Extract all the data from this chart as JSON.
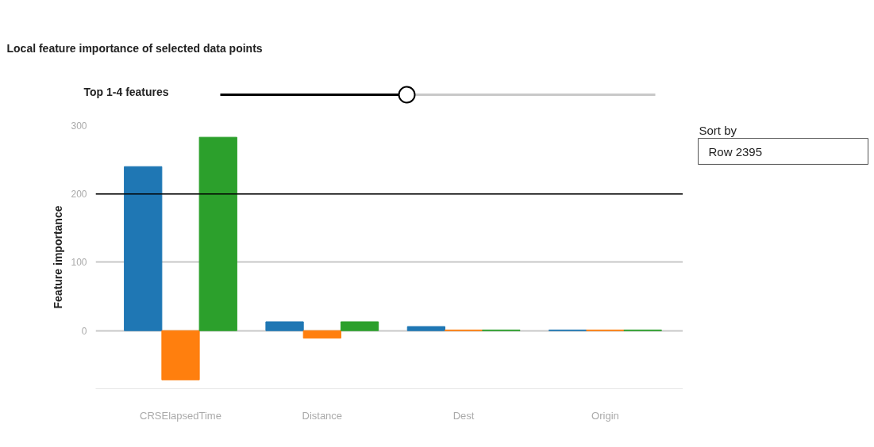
{
  "chart_data": {
    "type": "bar",
    "title": "Local feature importance of selected data points",
    "ylabel": "Feature importance",
    "categories": [
      "CRSElapsedTime",
      "Distance",
      "Dest",
      "Origin"
    ],
    "series": [
      {
        "color": "#1f77b4",
        "values": [
          240,
          13,
          6,
          1
        ]
      },
      {
        "color": "#ff7f0e",
        "values": [
          -72,
          -11,
          1,
          1
        ]
      },
      {
        "color": "#2ca02c",
        "values": [
          283,
          13,
          1,
          1
        ]
      }
    ],
    "ylim": [
      -85,
      300
    ],
    "yticks": [
      0,
      100,
      200,
      300
    ],
    "grid": "y",
    "ref_lines": [
      {
        "axis": "y",
        "value": 200,
        "label": null,
        "color": "#000000"
      }
    ],
    "annotations": [
      "Top 1-4 features",
      "Sort by",
      "Row 2395"
    ]
  }
}
